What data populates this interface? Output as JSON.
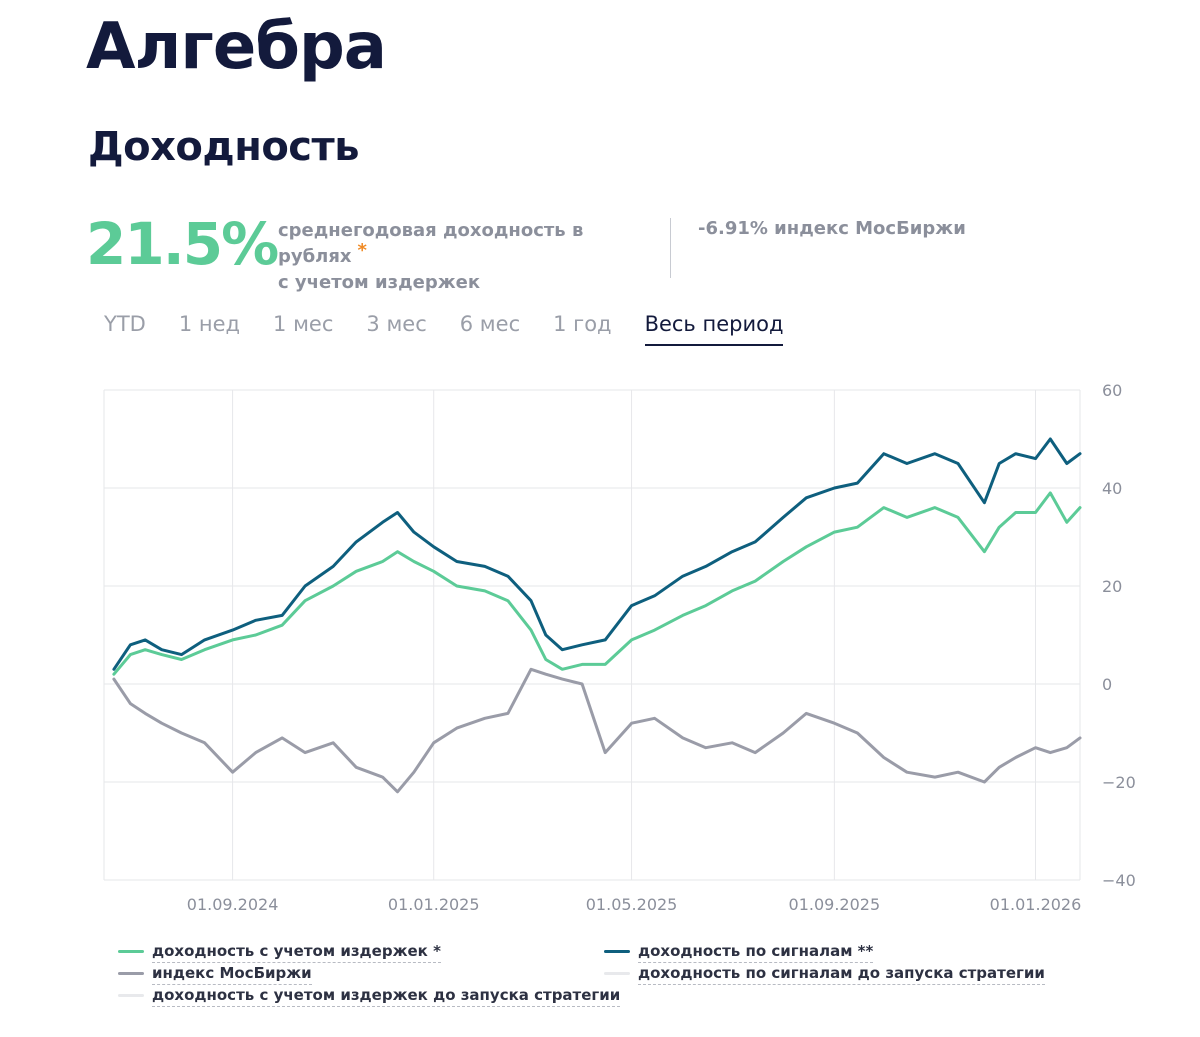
{
  "header": {
    "title": "Алгебра",
    "section": "Доходность"
  },
  "summary": {
    "yield_value": "21.5%",
    "yield_desc_line1": "среднегодовая доходность в рублях",
    "yield_desc_line2": "с учетом издержек",
    "asterisk": "*",
    "moex_note": "-6.91% индекс МосБиржи"
  },
  "tabs": [
    {
      "label": "YTD",
      "active": false
    },
    {
      "label": "1 нед",
      "active": false
    },
    {
      "label": "1 мес",
      "active": false
    },
    {
      "label": "3 мес",
      "active": false
    },
    {
      "label": "6 мес",
      "active": false
    },
    {
      "label": "1 год",
      "active": false
    },
    {
      "label": "Весь период",
      "active": true
    }
  ],
  "colors": {
    "net": "#5ccb97",
    "signals": "#0e5f7e",
    "moex": "#9a9ca8",
    "prelaunch": "#e8e9ec",
    "grid": "#e6e7ea",
    "axis_text": "#8b8f9b",
    "accent_asterisk": "#f08a24"
  },
  "legend": [
    {
      "label": "доходность с учетом издержек *",
      "color": "#5ccb97"
    },
    {
      "label": "доходность по сигналам **",
      "color": "#0e5f7e"
    },
    {
      "label": "индекс МосБиржи",
      "color": "#9a9ca8"
    },
    {
      "label": "доходность по сигналам до запуска стратегии",
      "color": "#e8e9ec"
    },
    {
      "label": "доходность с учетом издержек до запуска стратегии",
      "color": "#e8e9ec"
    }
  ],
  "chart_data": {
    "type": "line",
    "x_ticks": [
      "01.09.2024",
      "01.01.2025",
      "01.05.2025",
      "01.09.2025",
      "01.01.2026"
    ],
    "x_tick_dates": [
      "2024-09-01",
      "2025-01-01",
      "2025-05-01",
      "2025-09-01",
      "2026-01-01"
    ],
    "x_range": [
      "2024-06-15",
      "2026-01-28"
    ],
    "y_ticks": [
      60,
      40,
      20,
      0,
      -20,
      -40
    ],
    "ylim": [
      -40,
      60
    ],
    "y_axis_position": "right",
    "grid": true,
    "series": [
      {
        "name": "доходность с учетом издержек *",
        "color": "#5ccb97",
        "points": [
          [
            "2024-06-21",
            2
          ],
          [
            "2024-07-01",
            6
          ],
          [
            "2024-07-10",
            7
          ],
          [
            "2024-07-20",
            6
          ],
          [
            "2024-08-01",
            5
          ],
          [
            "2024-08-15",
            7
          ],
          [
            "2024-09-01",
            9
          ],
          [
            "2024-09-15",
            10
          ],
          [
            "2024-10-01",
            12
          ],
          [
            "2024-10-15",
            17
          ],
          [
            "2024-11-01",
            20
          ],
          [
            "2024-11-15",
            23
          ],
          [
            "2024-12-01",
            25
          ],
          [
            "2024-12-10",
            27
          ],
          [
            "2024-12-20",
            25
          ],
          [
            "2025-01-01",
            23
          ],
          [
            "2025-01-15",
            20
          ],
          [
            "2025-02-01",
            19
          ],
          [
            "2025-02-15",
            17
          ],
          [
            "2025-03-01",
            11
          ],
          [
            "2025-03-10",
            5
          ],
          [
            "2025-03-20",
            3
          ],
          [
            "2025-04-01",
            4
          ],
          [
            "2025-04-15",
            4
          ],
          [
            "2025-05-01",
            9
          ],
          [
            "2025-05-15",
            11
          ],
          [
            "2025-06-01",
            14
          ],
          [
            "2025-06-15",
            16
          ],
          [
            "2025-07-01",
            19
          ],
          [
            "2025-07-15",
            21
          ],
          [
            "2025-08-01",
            25
          ],
          [
            "2025-08-15",
            28
          ],
          [
            "2025-09-01",
            31
          ],
          [
            "2025-09-15",
            32
          ],
          [
            "2025-10-01",
            36
          ],
          [
            "2025-10-15",
            34
          ],
          [
            "2025-11-01",
            36
          ],
          [
            "2025-11-15",
            34
          ],
          [
            "2025-12-01",
            27
          ],
          [
            "2025-12-10",
            32
          ],
          [
            "2025-12-20",
            35
          ],
          [
            "2026-01-01",
            35
          ],
          [
            "2026-01-10",
            39
          ],
          [
            "2026-01-20",
            33
          ],
          [
            "2026-01-28",
            36
          ]
        ]
      },
      {
        "name": "доходность по сигналам **",
        "color": "#0e5f7e",
        "points": [
          [
            "2024-06-21",
            3
          ],
          [
            "2024-07-01",
            8
          ],
          [
            "2024-07-10",
            9
          ],
          [
            "2024-07-20",
            7
          ],
          [
            "2024-08-01",
            6
          ],
          [
            "2024-08-15",
            9
          ],
          [
            "2024-09-01",
            11
          ],
          [
            "2024-09-15",
            13
          ],
          [
            "2024-10-01",
            14
          ],
          [
            "2024-10-15",
            20
          ],
          [
            "2024-11-01",
            24
          ],
          [
            "2024-11-15",
            29
          ],
          [
            "2024-12-01",
            33
          ],
          [
            "2024-12-10",
            35
          ],
          [
            "2024-12-20",
            31
          ],
          [
            "2025-01-01",
            28
          ],
          [
            "2025-01-15",
            25
          ],
          [
            "2025-02-01",
            24
          ],
          [
            "2025-02-15",
            22
          ],
          [
            "2025-03-01",
            17
          ],
          [
            "2025-03-10",
            10
          ],
          [
            "2025-03-20",
            7
          ],
          [
            "2025-04-01",
            8
          ],
          [
            "2025-04-15",
            9
          ],
          [
            "2025-05-01",
            16
          ],
          [
            "2025-05-15",
            18
          ],
          [
            "2025-06-01",
            22
          ],
          [
            "2025-06-15",
            24
          ],
          [
            "2025-07-01",
            27
          ],
          [
            "2025-07-15",
            29
          ],
          [
            "2025-08-01",
            34
          ],
          [
            "2025-08-15",
            38
          ],
          [
            "2025-09-01",
            40
          ],
          [
            "2025-09-15",
            41
          ],
          [
            "2025-10-01",
            47
          ],
          [
            "2025-10-15",
            45
          ],
          [
            "2025-11-01",
            47
          ],
          [
            "2025-11-15",
            45
          ],
          [
            "2025-12-01",
            37
          ],
          [
            "2025-12-10",
            45
          ],
          [
            "2025-12-20",
            47
          ],
          [
            "2026-01-01",
            46
          ],
          [
            "2026-01-10",
            50
          ],
          [
            "2026-01-20",
            45
          ],
          [
            "2026-01-28",
            47
          ]
        ]
      },
      {
        "name": "индекс МосБиржи",
        "color": "#9a9ca8",
        "points": [
          [
            "2024-06-21",
            1
          ],
          [
            "2024-07-01",
            -4
          ],
          [
            "2024-07-10",
            -6
          ],
          [
            "2024-07-20",
            -8
          ],
          [
            "2024-08-01",
            -10
          ],
          [
            "2024-08-15",
            -12
          ],
          [
            "2024-09-01",
            -18
          ],
          [
            "2024-09-15",
            -14
          ],
          [
            "2024-10-01",
            -11
          ],
          [
            "2024-10-15",
            -14
          ],
          [
            "2024-11-01",
            -12
          ],
          [
            "2024-11-15",
            -17
          ],
          [
            "2024-12-01",
            -19
          ],
          [
            "2024-12-10",
            -22
          ],
          [
            "2024-12-20",
            -18
          ],
          [
            "2025-01-01",
            -12
          ],
          [
            "2025-01-15",
            -9
          ],
          [
            "2025-02-01",
            -7
          ],
          [
            "2025-02-15",
            -6
          ],
          [
            "2025-03-01",
            3
          ],
          [
            "2025-03-10",
            2
          ],
          [
            "2025-03-20",
            1
          ],
          [
            "2025-04-01",
            0
          ],
          [
            "2025-04-15",
            -14
          ],
          [
            "2025-05-01",
            -8
          ],
          [
            "2025-05-15",
            -7
          ],
          [
            "2025-06-01",
            -11
          ],
          [
            "2025-06-15",
            -13
          ],
          [
            "2025-07-01",
            -12
          ],
          [
            "2025-07-15",
            -14
          ],
          [
            "2025-08-01",
            -10
          ],
          [
            "2025-08-15",
            -6
          ],
          [
            "2025-09-01",
            -8
          ],
          [
            "2025-09-15",
            -10
          ],
          [
            "2025-10-01",
            -15
          ],
          [
            "2025-10-15",
            -18
          ],
          [
            "2025-11-01",
            -19
          ],
          [
            "2025-11-15",
            -18
          ],
          [
            "2025-12-01",
            -20
          ],
          [
            "2025-12-10",
            -17
          ],
          [
            "2025-12-20",
            -15
          ],
          [
            "2026-01-01",
            -13
          ],
          [
            "2026-01-10",
            -14
          ],
          [
            "2026-01-20",
            -13
          ],
          [
            "2026-01-28",
            -11
          ]
        ]
      }
    ]
  }
}
